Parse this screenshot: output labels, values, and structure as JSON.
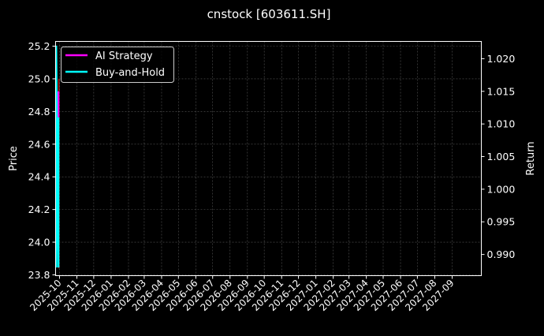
{
  "chart_data": {
    "type": "line",
    "title": "cnstock [603611.SH]",
    "ylabel_left": "Price",
    "ylabel_right": "Return",
    "xlabel": "",
    "xlim": [
      "2025-09-24",
      "2027-10-23"
    ],
    "ylim_left": [
      23.795,
      25.229
    ],
    "ylim_right": [
      0.98675,
      1.02265
    ],
    "grid": true,
    "legend_position": "top-left",
    "x_ticks": [
      "2025-10",
      "2025-11",
      "2025-12",
      "2026-01",
      "2026-02",
      "2026-03",
      "2026-04",
      "2026-05",
      "2026-06",
      "2026-07",
      "2026-08",
      "2026-09",
      "2026-10",
      "2026-11",
      "2026-12",
      "2027-01",
      "2027-02",
      "2027-03",
      "2027-04",
      "2027-05",
      "2027-06",
      "2027-07",
      "2027-08",
      "2027-09"
    ],
    "y_ticks_left": [
      23.8,
      24.0,
      24.2,
      24.4,
      24.6,
      24.8,
      25.0,
      25.2
    ],
    "y_ticks_right": [
      0.99,
      0.995,
      1.0,
      1.005,
      1.01,
      1.015,
      1.02
    ],
    "series": [
      {
        "axis": "left",
        "color": "#d62728",
        "x": [
          "2025-09-30",
          "2025-09-30"
        ],
        "y": [
          23.84,
          25.0
        ]
      },
      {
        "name": "AI Strategy",
        "axis": "right",
        "color": "#ff00ff",
        "x": [
          "2025-09-29",
          "2025-09-29"
        ],
        "y": [
          1.011,
          1.015
        ]
      },
      {
        "name": "Buy-and-Hold",
        "axis": "right",
        "color": "#00ffff",
        "x": [
          "2025-09-25",
          "2025-09-25",
          "2025-09-29",
          "2025-09-29"
        ],
        "y": [
          0.988,
          1.022,
          0.988,
          1.011
        ]
      }
    ]
  }
}
